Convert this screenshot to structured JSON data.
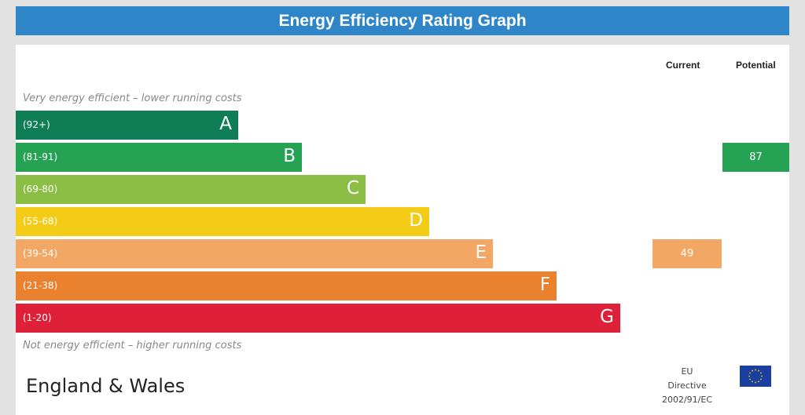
{
  "title": "Energy Efficiency Rating Graph",
  "chart_data": {
    "type": "bar",
    "title": "Energy Efficiency Rating Graph",
    "columns": [
      "Current",
      "Potential"
    ],
    "top_note": "Very energy efficient – lower running costs",
    "bottom_note": "Not energy efficient – higher running costs",
    "bands": [
      {
        "letter": "A",
        "range": "(92+)",
        "color": "#0f7d55"
      },
      {
        "letter": "B",
        "range": "(81-91)",
        "color": "#25a254"
      },
      {
        "letter": "C",
        "range": "(69-80)",
        "color": "#8cbd44"
      },
      {
        "letter": "D",
        "range": "(55-68)",
        "color": "#f4cc17"
      },
      {
        "letter": "E",
        "range": "(39-54)",
        "color": "#f2a864"
      },
      {
        "letter": "F",
        "range": "(21-38)",
        "color": "#ea812f"
      },
      {
        "letter": "G",
        "range": "(1-20)",
        "color": "#de2039"
      }
    ],
    "current": {
      "value": "49",
      "band": "E",
      "color": "#f2a864"
    },
    "potential": {
      "value": "87",
      "band": "B",
      "color": "#25a254"
    }
  },
  "footer": {
    "country": "England & Wales",
    "eu_line1": "EU",
    "eu_line2": "Directive",
    "eu_line3": "2002/91/EC"
  }
}
